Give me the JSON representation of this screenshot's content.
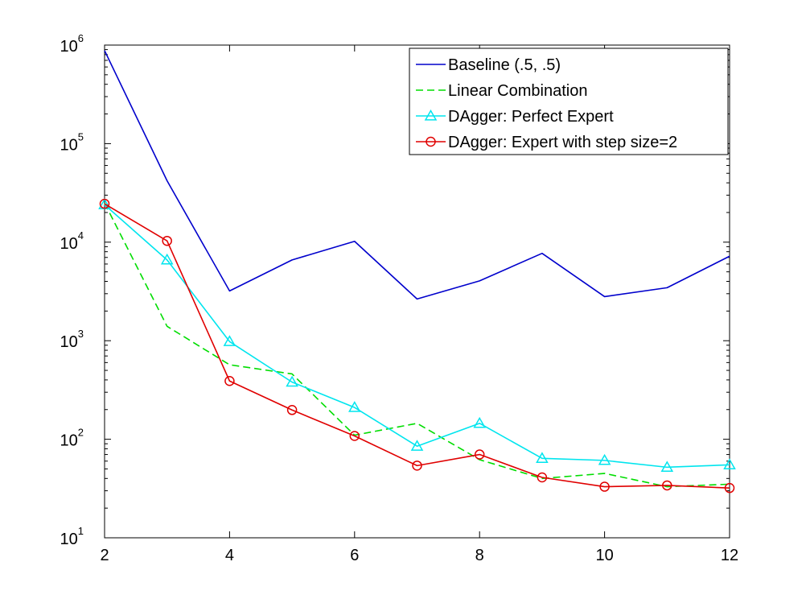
{
  "chart_data": {
    "type": "line",
    "title": "",
    "xlabel": "",
    "ylabel": "",
    "yscale": "log",
    "xlim": [
      2,
      12
    ],
    "ylim": [
      10,
      1000000
    ],
    "xticks": [
      "2",
      "4",
      "6",
      "8",
      "10",
      "12"
    ],
    "yticks": [
      {
        "base": "10",
        "exp": "1"
      },
      {
        "base": "10",
        "exp": "2"
      },
      {
        "base": "10",
        "exp": "3"
      },
      {
        "base": "10",
        "exp": "4"
      },
      {
        "base": "10",
        "exp": "5"
      },
      {
        "base": "10",
        "exp": "6"
      }
    ],
    "grid": false,
    "legend_position": "top-right",
    "x": [
      2,
      3,
      4,
      5,
      6,
      7,
      8,
      9,
      10,
      11,
      12
    ],
    "series": [
      {
        "name": "Baseline (.5, .5)",
        "color": "#0000cc",
        "line_style": "solid",
        "marker": "none",
        "values": [
          880000,
          42000,
          3200,
          6600,
          10200,
          2650,
          4050,
          7700,
          2800,
          3450,
          7200
        ]
      },
      {
        "name": "Linear Combination",
        "color": "#00dd00",
        "line_style": "dashed",
        "marker": "none",
        "values": [
          25000,
          1400,
          570,
          460,
          110,
          145,
          62,
          40,
          45,
          33,
          35
        ]
      },
      {
        "name": "DAgger: Perfect Expert",
        "color": "#00e5ee",
        "line_style": "solid",
        "marker": "triangle",
        "values": [
          24000,
          6600,
          980,
          380,
          210,
          85,
          145,
          64,
          61,
          52,
          55
        ]
      },
      {
        "name": "DAgger: Expert with step size=2",
        "color": "#e00000",
        "line_style": "solid",
        "marker": "circle",
        "values": [
          24500,
          10300,
          390,
          198,
          108,
          54,
          70,
          41,
          33,
          34,
          32
        ]
      }
    ]
  }
}
